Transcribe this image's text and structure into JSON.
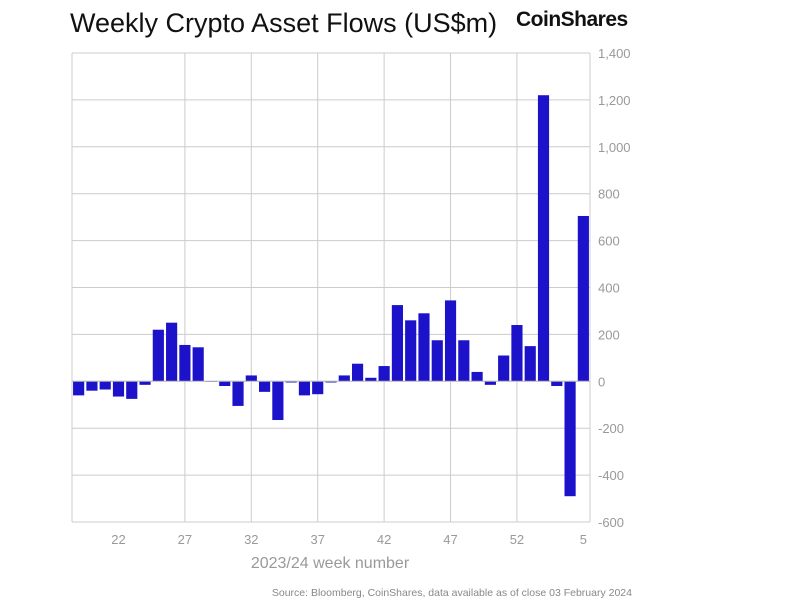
{
  "chart_data": {
    "type": "bar",
    "title": "Weekly Crypto Asset Flows (US$m)",
    "logo": "CoinShares",
    "xlabel": "2023/24 week number",
    "ylabel": "",
    "source": "Source: Bloomberg, CoinShares, data available as of close 03 February 2024",
    "categories": [
      "19",
      "20",
      "21",
      "22",
      "23",
      "24",
      "25",
      "26",
      "27",
      "28",
      "29",
      "30",
      "31",
      "32",
      "33",
      "34",
      "35",
      "36",
      "37",
      "38",
      "39",
      "40",
      "41",
      "42",
      "43",
      "44",
      "45",
      "46",
      "47",
      "48",
      "49",
      "50",
      "51",
      "52",
      "1",
      "2",
      "3",
      "4",
      "5"
    ],
    "values": [
      -60,
      -40,
      -35,
      -65,
      -75,
      -15,
      220,
      250,
      155,
      145,
      0,
      -20,
      -105,
      25,
      -45,
      -165,
      -5,
      -60,
      -55,
      -5,
      25,
      75,
      15,
      65,
      325,
      260,
      290,
      175,
      345,
      175,
      40,
      -15,
      110,
      240,
      150,
      1220,
      -20,
      -490,
      705
    ],
    "x_tick_labels": [
      "22",
      "27",
      "32",
      "37",
      "42",
      "47",
      "52",
      "5"
    ],
    "y_ticks": [
      -600,
      -400,
      -200,
      0,
      200,
      400,
      600,
      800,
      1000,
      1200,
      1400
    ],
    "y_tick_labels": [
      "-600",
      "-400",
      "-200",
      "0",
      "200",
      "400",
      "600",
      "800",
      "1,000",
      "1,200",
      "1,400"
    ],
    "ylim": [
      -600,
      1400
    ],
    "y_axis_side": "right",
    "grid": true,
    "bar_color": "#1c12c9"
  }
}
